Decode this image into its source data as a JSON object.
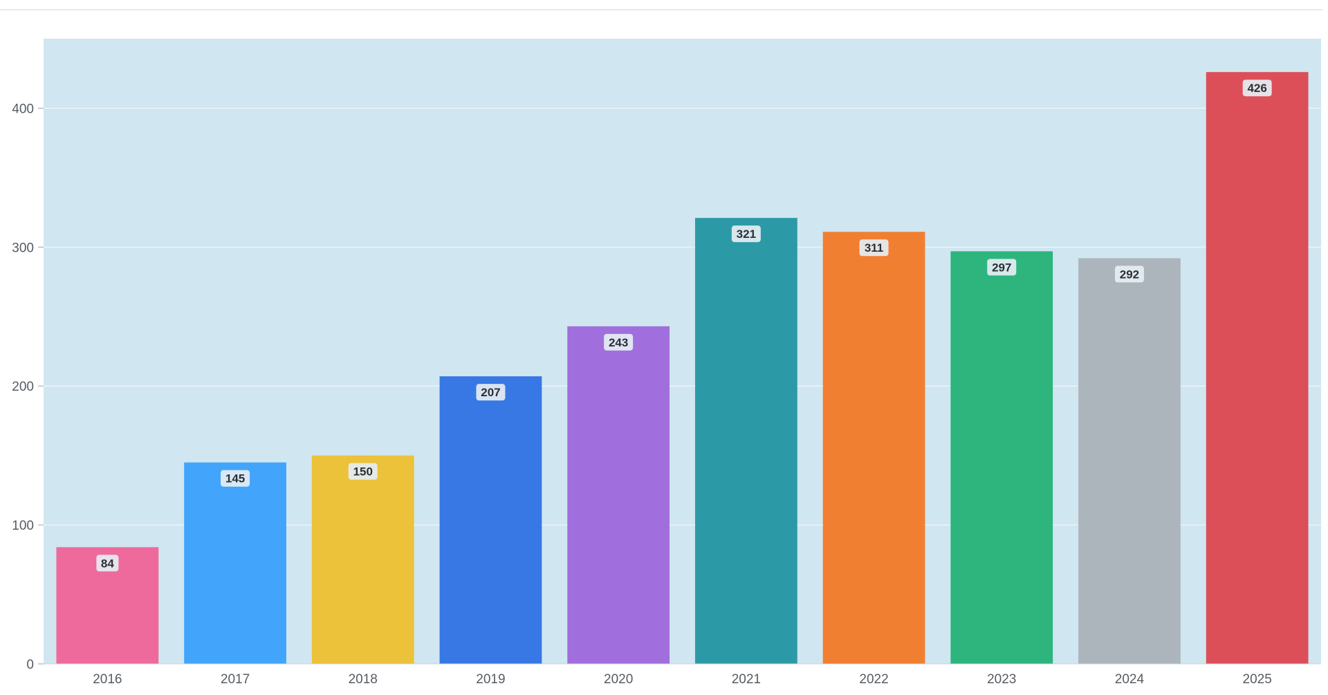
{
  "chart_data": {
    "type": "bar",
    "title": "",
    "xlabel": "",
    "ylabel": "",
    "categories": [
      "2016",
      "2017",
      "2018",
      "2019",
      "2020",
      "2021",
      "2022",
      "2023",
      "2024",
      "2025"
    ],
    "values": [
      84,
      145,
      150,
      207,
      243,
      321,
      311,
      297,
      292,
      426
    ],
    "ylim": [
      0,
      450
    ],
    "yticks": [
      0,
      100,
      200,
      300,
      400
    ],
    "grid": true,
    "legend": "none",
    "bar_colors": [
      "#ef6a9c",
      "#42a5fb",
      "#ebc23a",
      "#3778e4",
      "#a16fdd",
      "#2b9aa6",
      "#f17f32",
      "#2db57d",
      "#adb5bc",
      "#dc4f58"
    ],
    "plot_background": "#d0e6f0",
    "grid_color": "#f2f8fb"
  }
}
